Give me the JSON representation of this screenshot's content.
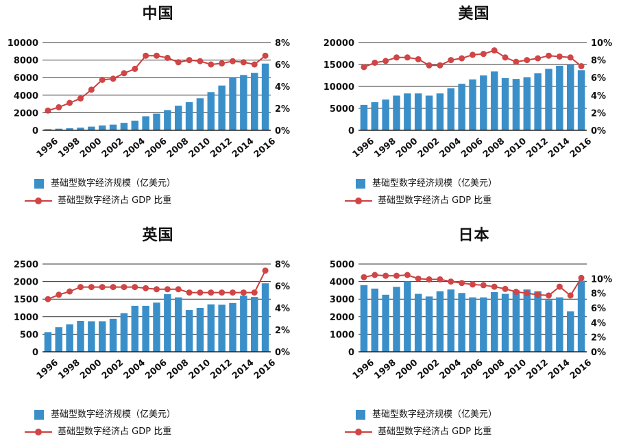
{
  "colors": {
    "bar": "#3a8fc9",
    "line": "#cc3d3d",
    "marker": "#d04545",
    "axis": "#222222",
    "grid": "#333333"
  },
  "legend": {
    "bar_label": "基础型数字经济规模（亿美元）",
    "line_label": "基础型数字经济占 GDP 比重"
  },
  "chart_data": [
    {
      "type": "bar",
      "title": "中国",
      "categories": [
        "1996",
        "1997",
        "1998",
        "1999",
        "2000",
        "2001",
        "2002",
        "2003",
        "2004",
        "2005",
        "2006",
        "2007",
        "2008",
        "2009",
        "2010",
        "2011",
        "2012",
        "2013",
        "2014",
        "2015",
        "2016"
      ],
      "x_tick_labels": [
        "1996",
        "1998",
        "2000",
        "2002",
        "2004",
        "2006",
        "2008",
        "2010",
        "2012",
        "2014",
        "2016"
      ],
      "ylim": [
        0,
        10000
      ],
      "y_ticks": [
        "0",
        "2000",
        "4000",
        "6000",
        "8000",
        "10000"
      ],
      "y2lim": [
        0,
        8
      ],
      "y2_ticks": [
        "0%",
        "2%",
        "4%",
        "6%",
        "8%"
      ],
      "series": [
        {
          "name": "基础型数字经济规模（亿美元）",
          "type": "bar",
          "values": [
            130,
            180,
            230,
            300,
            420,
            550,
            650,
            850,
            1100,
            1600,
            1900,
            2300,
            2800,
            3200,
            3650,
            4350,
            5100,
            5950,
            6300,
            6550,
            7600
          ]
        },
        {
          "name": "基础型数字经济占 GDP 比重",
          "type": "line",
          "values": [
            1.8,
            2.1,
            2.5,
            2.9,
            3.7,
            4.6,
            4.7,
            5.2,
            5.6,
            6.8,
            6.8,
            6.6,
            6.2,
            6.4,
            6.3,
            6.0,
            6.1,
            6.3,
            6.2,
            6.0,
            6.8
          ]
        }
      ]
    },
    {
      "type": "bar",
      "title": "美国",
      "categories": [
        "1996",
        "1997",
        "1998",
        "1999",
        "2000",
        "2001",
        "2002",
        "2003",
        "2004",
        "2005",
        "2006",
        "2007",
        "2008",
        "2009",
        "2010",
        "2011",
        "2012",
        "2013",
        "2014",
        "2015",
        "2016"
      ],
      "x_tick_labels": [
        "1996",
        "1998",
        "2000",
        "2002",
        "2004",
        "2006",
        "2008",
        "2010",
        "2012",
        "2014",
        "2016"
      ],
      "ylim": [
        0,
        20000
      ],
      "y_ticks": [
        "0",
        "5000",
        "10000",
        "15000",
        "20000"
      ],
      "y2lim": [
        0,
        10
      ],
      "y2_ticks": [
        "0%",
        "2%",
        "4%",
        "6%",
        "8%",
        "10%"
      ],
      "series": [
        {
          "name": "基础型数字经济规模（亿美元）",
          "type": "bar",
          "values": [
            5800,
            6400,
            7000,
            7900,
            8400,
            8400,
            7900,
            8400,
            9600,
            10600,
            11600,
            12500,
            13400,
            11900,
            11700,
            12100,
            13000,
            14000,
            14700,
            15000,
            13700
          ]
        },
        {
          "name": "基础型数字经济占 GDP 比重",
          "type": "line",
          "values": [
            7.2,
            7.7,
            7.9,
            8.3,
            8.3,
            8.1,
            7.4,
            7.4,
            8.0,
            8.2,
            8.6,
            8.7,
            9.1,
            8.3,
            7.8,
            8.0,
            8.2,
            8.5,
            8.4,
            8.3,
            7.3
          ]
        }
      ]
    },
    {
      "type": "bar",
      "title": "英国",
      "categories": [
        "1996",
        "1997",
        "1998",
        "1999",
        "2000",
        "2001",
        "2002",
        "2003",
        "2004",
        "2005",
        "2006",
        "2007",
        "2008",
        "2009",
        "2010",
        "2011",
        "2012",
        "2013",
        "2014",
        "2015",
        "2016"
      ],
      "x_tick_labels": [
        "1996",
        "1998",
        "2000",
        "2002",
        "2004",
        "2006",
        "2008",
        "2010",
        "2012",
        "2014",
        "2016"
      ],
      "ylim": [
        0,
        2500
      ],
      "y_ticks": [
        "0",
        "500",
        "1000",
        "1500",
        "2000",
        "2500"
      ],
      "y2lim": [
        0,
        8
      ],
      "y2_ticks": [
        "0%",
        "2%",
        "4%",
        "6%",
        "8%"
      ],
      "series": [
        {
          "name": "基础型数字经济规模（亿美元）",
          "type": "bar",
          "values": [
            560,
            700,
            780,
            880,
            870,
            870,
            940,
            1100,
            1310,
            1310,
            1400,
            1640,
            1550,
            1190,
            1250,
            1350,
            1340,
            1390,
            1600,
            1560,
            1950
          ]
        },
        {
          "name": "基础型数字经济占 GDP 比重",
          "type": "line",
          "values": [
            4.8,
            5.2,
            5.5,
            5.9,
            5.9,
            5.9,
            5.9,
            5.9,
            5.9,
            5.8,
            5.7,
            5.7,
            5.7,
            5.4,
            5.4,
            5.4,
            5.4,
            5.4,
            5.4,
            5.4,
            7.4
          ]
        }
      ]
    },
    {
      "type": "bar",
      "title": "日本",
      "categories": [
        "1996",
        "1997",
        "1998",
        "1999",
        "2000",
        "2001",
        "2002",
        "2003",
        "2004",
        "2005",
        "2006",
        "2007",
        "2008",
        "2009",
        "2010",
        "2011",
        "2012",
        "2013",
        "2014",
        "2015",
        "2016"
      ],
      "x_tick_labels": [
        "1996",
        "1998",
        "2000",
        "2002",
        "2004",
        "2006",
        "2008",
        "2010",
        "2012",
        "2014",
        "2016"
      ],
      "ylim": [
        0,
        5000
      ],
      "y_ticks": [
        "0",
        "1000",
        "2000",
        "3000",
        "4000",
        "5000"
      ],
      "y2lim": [
        0,
        12
      ],
      "y2_ticks": [
        "0%",
        "2%",
        "4%",
        "6%",
        "8%",
        "10%"
      ],
      "series": [
        {
          "name": "基础型数字经济规模（亿美元）",
          "type": "bar",
          "values": [
            3800,
            3600,
            3250,
            3700,
            4000,
            3300,
            3150,
            3450,
            3550,
            3350,
            3100,
            3100,
            3400,
            3300,
            3500,
            3550,
            3450,
            2950,
            3100,
            2300,
            4050
          ]
        },
        {
          "name": "基础型数字经济占 GDP 比重",
          "type": "line",
          "values": [
            10.2,
            10.5,
            10.4,
            10.4,
            10.5,
            10.0,
            9.9,
            9.9,
            9.6,
            9.4,
            9.2,
            9.1,
            8.9,
            8.6,
            8.2,
            8.0,
            7.8,
            7.7,
            8.9,
            7.7,
            10.1
          ]
        }
      ]
    }
  ]
}
